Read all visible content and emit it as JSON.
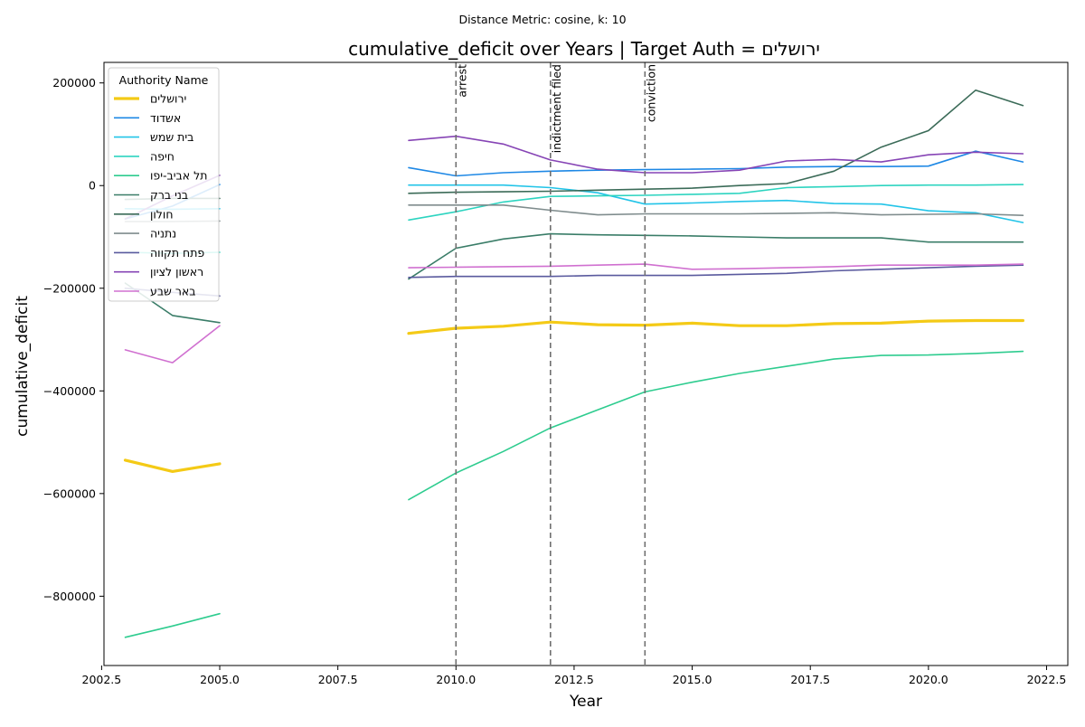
{
  "chart_data": {
    "type": "line",
    "suptitle": "Distance Metric: cosine, k: 10",
    "title": "cumulative_deficit over Years | Target Auth = ירושלים",
    "xlabel": "Year",
    "ylabel": "cumulative_deficit",
    "xlim": [
      2002.55,
      2022.95
    ],
    "ylim": [
      -935000,
      240000
    ],
    "xticks": [
      2002.5,
      2005.0,
      2007.5,
      2010.0,
      2012.5,
      2015.0,
      2017.5,
      2020.0,
      2022.5
    ],
    "xtick_labels": [
      "2002.5",
      "2005.0",
      "2007.5",
      "2010.0",
      "2012.5",
      "2015.0",
      "2017.5",
      "2020.0",
      "2022.5"
    ],
    "yticks": [
      200000,
      0,
      -200000,
      -400000,
      -600000,
      -800000
    ],
    "ytick_labels": [
      "200000",
      "0",
      "−200000",
      "−400000",
      "−600000",
      "−800000"
    ],
    "grid": false,
    "legend": {
      "title": "Authority Name",
      "position": "top-left"
    },
    "events": [
      {
        "x": 2010,
        "label": "arrest"
      },
      {
        "x": 2012,
        "label": "indictment filed"
      },
      {
        "x": 2014,
        "label": "conviction"
      }
    ],
    "x": [
      2003,
      2004,
      2005,
      2006,
      2007,
      2008,
      2009,
      2010,
      2011,
      2012,
      2013,
      2014,
      2015,
      2016,
      2017,
      2018,
      2019,
      2020,
      2021,
      2022
    ],
    "series": [
      {
        "name": "ירושלים",
        "color": "#f4ca16",
        "width": 3.2,
        "values": [
          -535000,
          -557000,
          -542000,
          null,
          null,
          null,
          -288000,
          -278000,
          -274000,
          -266000,
          -271000,
          -272000,
          -268000,
          -273000,
          -273000,
          -269000,
          -268000,
          -264000,
          -263000,
          -263000
        ]
      },
      {
        "name": "אשדוד",
        "color": "#1e88e5",
        "width": 1.6,
        "values": [
          -65000,
          -40000,
          2000,
          null,
          null,
          null,
          35000,
          19000,
          25000,
          28000,
          30000,
          31000,
          32000,
          33000,
          36000,
          37000,
          37000,
          38000,
          67000,
          46000
        ]
      },
      {
        "name": "בית שמש",
        "color": "#22c4e8",
        "width": 1.6,
        "values": [
          -45000,
          -46000,
          -45000,
          null,
          null,
          null,
          1000,
          1000,
          1000,
          -4000,
          -14000,
          -36000,
          -34000,
          -31000,
          -29000,
          -35000,
          -36000,
          -49000,
          -53000,
          -72000
        ]
      },
      {
        "name": "חיפה",
        "color": "#2dd4c0",
        "width": 1.6,
        "values": [
          -130000,
          -132000,
          -130000,
          null,
          null,
          null,
          -67000,
          -51000,
          -32000,
          -21000,
          -20000,
          -19000,
          -17000,
          -15000,
          -4000,
          -2000,
          0,
          1000,
          1000,
          2000
        ]
      },
      {
        "name": "תל אביב-יפו",
        "color": "#2ecc8f",
        "width": 1.6,
        "values": [
          -880000,
          -858000,
          -834000,
          null,
          null,
          null,
          -612000,
          -560000,
          -518000,
          -472000,
          -437000,
          -402000,
          -383000,
          -366000,
          -352000,
          -338000,
          -331000,
          -330000,
          -327000,
          -323000
        ]
      },
      {
        "name": "בני ברק",
        "color": "#3a7d68",
        "width": 1.6,
        "values": [
          -190000,
          -253000,
          -267000,
          null,
          null,
          null,
          -182000,
          -122000,
          -104000,
          -94000,
          -96000,
          -97000,
          -98000,
          -100000,
          -102000,
          -102000,
          -102000,
          -110000,
          -110000,
          -110000
        ]
      },
      {
        "name": "חולון",
        "color": "#3b6b58",
        "width": 1.6,
        "values": [
          -27000,
          -25000,
          -25000,
          null,
          null,
          null,
          -15000,
          -13000,
          -12000,
          -11000,
          -9000,
          -7000,
          -5000,
          0,
          4000,
          28000,
          75000,
          107000,
          186000,
          156000
        ]
      },
      {
        "name": "נתניה",
        "color": "#7f8c8d",
        "width": 1.6,
        "values": [
          -70000,
          -70000,
          -69000,
          null,
          null,
          null,
          -38000,
          -38000,
          -38000,
          -48000,
          -57000,
          -55000,
          -55000,
          -55000,
          -54000,
          -53000,
          -57000,
          -56000,
          -55000,
          -58000
        ]
      },
      {
        "name": "פתח תקווה",
        "color": "#5a5a9e",
        "width": 1.6,
        "values": [
          -200000,
          -208000,
          -215000,
          null,
          null,
          null,
          -179000,
          -177000,
          -177000,
          -177000,
          -175000,
          -175000,
          -175000,
          -173000,
          -171000,
          -166000,
          -163000,
          -160000,
          -157000,
          -155000
        ]
      },
      {
        "name": "ראשון לציון",
        "color": "#8644b5",
        "width": 1.6,
        "values": [
          -65000,
          -20000,
          20000,
          null,
          null,
          null,
          88000,
          96000,
          81000,
          50000,
          32000,
          25000,
          25000,
          30000,
          48000,
          51000,
          46000,
          60000,
          65000,
          62000
        ]
      },
      {
        "name": "באר שבע",
        "color": "#d070d0",
        "width": 1.6,
        "values": [
          -320000,
          -345000,
          -273000,
          null,
          null,
          null,
          -160000,
          -159000,
          -158000,
          -157000,
          -155000,
          -153000,
          -163000,
          -162000,
          -160000,
          -158000,
          -155000,
          -155000,
          -155000,
          -153000
        ]
      }
    ]
  }
}
